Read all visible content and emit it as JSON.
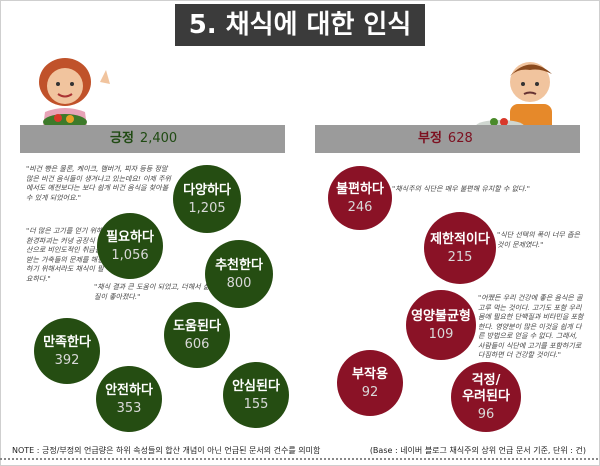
{
  "title": "5. 채식에 대한 인식",
  "positive": {
    "label": "긍정",
    "count": "2,400",
    "bubbles": [
      {
        "label": "다양하다",
        "value": "1,205"
      },
      {
        "label": "필요하다",
        "value": "1,056"
      },
      {
        "label": "추천한다",
        "value": "800"
      },
      {
        "label": "만족한다",
        "value": "392"
      },
      {
        "label": "도움된다",
        "value": "606"
      },
      {
        "label": "안전하다",
        "value": "353"
      },
      {
        "label": "안심된다",
        "value": "155"
      }
    ],
    "quotes": [
      "\"비건 빵은 물론, 케이크, 햄버거, 피자 등등 정말 많은 비건 음식들이 생겨나고 있는데요! 이제 주위에서도 예전보다는 보다 쉽게 비건 음식을 찾아볼 수 있게 되었어요.\"",
      "\"더 많은 고기를 얻기 위해 환경파괴는 커녕 공장식 축산으로 비인도적인 취급을 받는 가축들의 문제를 해결하기 위해서라도 채식이 필요하다.\"",
      "\"채식 결과 큰 도움이 되었고, 더해서 삶의 질이 좋아졌다.\""
    ]
  },
  "negative": {
    "label": "부정",
    "count": "628",
    "bubbles": [
      {
        "label": "불편하다",
        "value": "246"
      },
      {
        "label": "제한적이다",
        "value": "215"
      },
      {
        "label": "영양불균형",
        "value": "109"
      },
      {
        "label": "부작용",
        "value": "92"
      },
      {
        "label": "걱정/\n우려된다",
        "value": "96"
      }
    ],
    "quotes": [
      "\"채식주의 식단은 매우 불편해 유지할 수 없다.\"",
      "\"식단 선택의 폭이 너무 좁은 것이 문제였다.\"",
      "\"어쨌든 우리 건강에 좋은 음식은 골고루 먹는 것이다. 고기도 포함 우리 몸에 필요한 단백질과 비타민을 포함한다. 영양분이 많은 이것을 쉽게 다른 방법으로 얻을 수 없다. 그래서, 사람들이 식단에 고기를 포함하기로 다짐하면 더 건강할 것이다.\""
    ]
  },
  "footer": {
    "note": "NOTE : 긍정/부정의 언급량은 하위 속성들의 합산 개념이 아닌 언급된 문서의 건수를 의미함",
    "base": "(Base : 네이버 블로그 채식주의 상위 언급 문서 기준, 단위 : 건)"
  },
  "colors": {
    "positive": "#254d12",
    "negative": "#8a1226",
    "band": "#9b9b9b",
    "title_bg": "#3b3b3b"
  }
}
